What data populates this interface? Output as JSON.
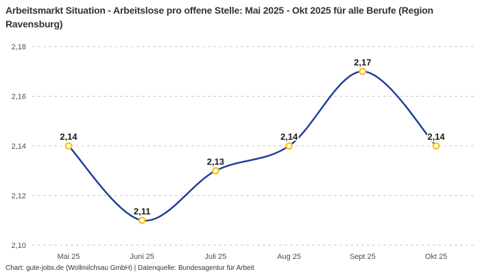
{
  "header": {
    "title": "Arbeitsmarkt Situation - Arbeitslose pro offene Stelle: Mai 2025 - Okt 2025 für alle Berufe (Region Ravensburg)"
  },
  "footer": {
    "attribution": "Chart: gute-jobs.de (Wollmilchsau GmbH) | Datenquelle: Bundesagentur für Arbeit"
  },
  "chart_data": {
    "type": "line",
    "title": "Arbeitsmarkt Situation - Arbeitslose pro offene Stelle: Mai 2025 - Okt 2025 für alle Berufe (Region Ravensburg)",
    "categories": [
      "Mai 25",
      "Juni 25",
      "Juli 25",
      "Aug 25",
      "Sept 25",
      "Okt 25"
    ],
    "values": [
      2.14,
      2.11,
      2.13,
      2.14,
      2.17,
      2.14
    ],
    "point_labels": [
      "2,14",
      "2,11",
      "2,13",
      "2,14",
      "2,17",
      "2,14"
    ],
    "xlabel": "",
    "ylabel": "",
    "ylim": [
      2.1,
      2.18
    ],
    "y_ticks": {
      "values": [
        2.1,
        2.12,
        2.14,
        2.16,
        2.18
      ],
      "labels": [
        "2,10",
        "2,12",
        "2,14",
        "2,16",
        "2,18"
      ]
    },
    "grid": "horizontal-dashed",
    "legend": "none",
    "line_smoothing": true,
    "colors": {
      "line": "#203e9a",
      "marker_stroke": "#fcc419",
      "marker_fill": "#ffffff",
      "grid": "#c9c9c9",
      "tick_text": "#4d4d4d",
      "label_text": "#1a1a1a",
      "title_text": "#333333",
      "footer_text": "#333333",
      "background": "#ffffff"
    }
  }
}
